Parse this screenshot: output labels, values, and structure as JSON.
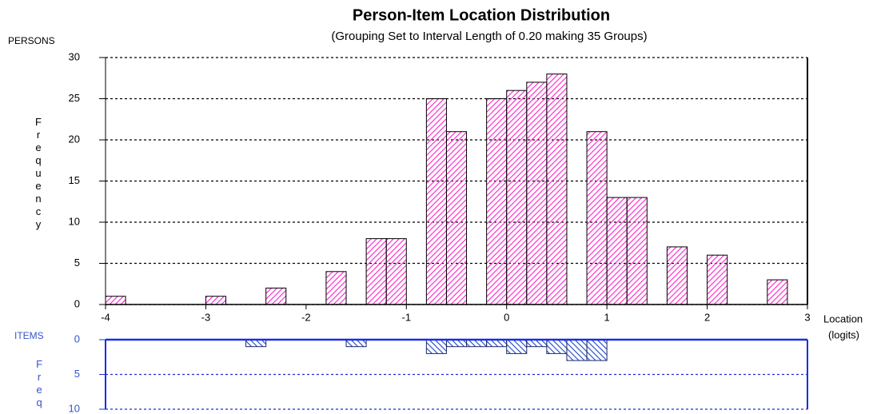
{
  "chart_data": [
    {
      "type": "histogram",
      "title": "Person-Item Location Distribution",
      "subtitle": "(Grouping Set to Interval Length of  0.20  making  35  Groups)",
      "panel_label": "PERSONS",
      "y_label": "Frequency",
      "x_label": "Location",
      "x_unit": "(logits)",
      "bins": [
        -4,
        -3.8,
        -3.6,
        -3.4,
        -3.2,
        -3,
        -2.8,
        -2.6,
        -2.4,
        -2.2,
        -2,
        -1.8,
        -1.6,
        -1.4,
        -1.2,
        -1,
        -0.8,
        -0.6,
        -0.4,
        -0.2,
        0,
        0.2,
        0.4,
        0.6,
        0.8,
        1,
        1.2,
        1.4,
        1.6,
        1.8,
        2,
        2.2,
        2.4,
        2.6,
        2.8,
        3
      ],
      "values": [
        1,
        0,
        0,
        0,
        0,
        1,
        0,
        0,
        2,
        0,
        0,
        4,
        0,
        8,
        8,
        0,
        25,
        21,
        0,
        25,
        26,
        27,
        28,
        0,
        21,
        13,
        13,
        0,
        7,
        0,
        6,
        0,
        0,
        3,
        0
      ],
      "color": "#ff33cc",
      "xlim": [
        -4,
        3
      ],
      "xticks": [
        -4,
        -3,
        -2,
        -1,
        0,
        1,
        2,
        3
      ],
      "ylim": [
        0,
        30
      ],
      "yticks": [
        0,
        5,
        10,
        15,
        20,
        25,
        30
      ],
      "grid": true
    },
    {
      "type": "histogram",
      "panel_label": "ITEMS",
      "y_label": "Freq",
      "bins": [
        -4,
        -3.8,
        -3.6,
        -3.4,
        -3.2,
        -3,
        -2.8,
        -2.6,
        -2.4,
        -2.2,
        -2,
        -1.8,
        -1.6,
        -1.4,
        -1.2,
        -1,
        -0.8,
        -0.6,
        -0.4,
        -0.2,
        0,
        0.2,
        0.4,
        0.6,
        0.8,
        1,
        1.2,
        1.4,
        1.6,
        1.8,
        2,
        2.2,
        2.4,
        2.6,
        2.8,
        3
      ],
      "values": [
        0,
        0,
        0,
        0,
        0,
        0,
        0,
        1,
        0,
        0,
        0,
        0,
        1,
        0,
        0,
        0,
        2,
        1,
        1,
        1,
        2,
        1,
        2,
        3,
        3,
        0,
        0,
        0,
        0,
        0,
        0,
        0,
        0,
        0,
        0
      ],
      "color": "#3355cc",
      "xlim": [
        -4,
        3
      ],
      "ylim": [
        0,
        10
      ],
      "yticks": [
        0,
        5,
        10
      ],
      "y_inverted": true,
      "grid": true
    }
  ]
}
